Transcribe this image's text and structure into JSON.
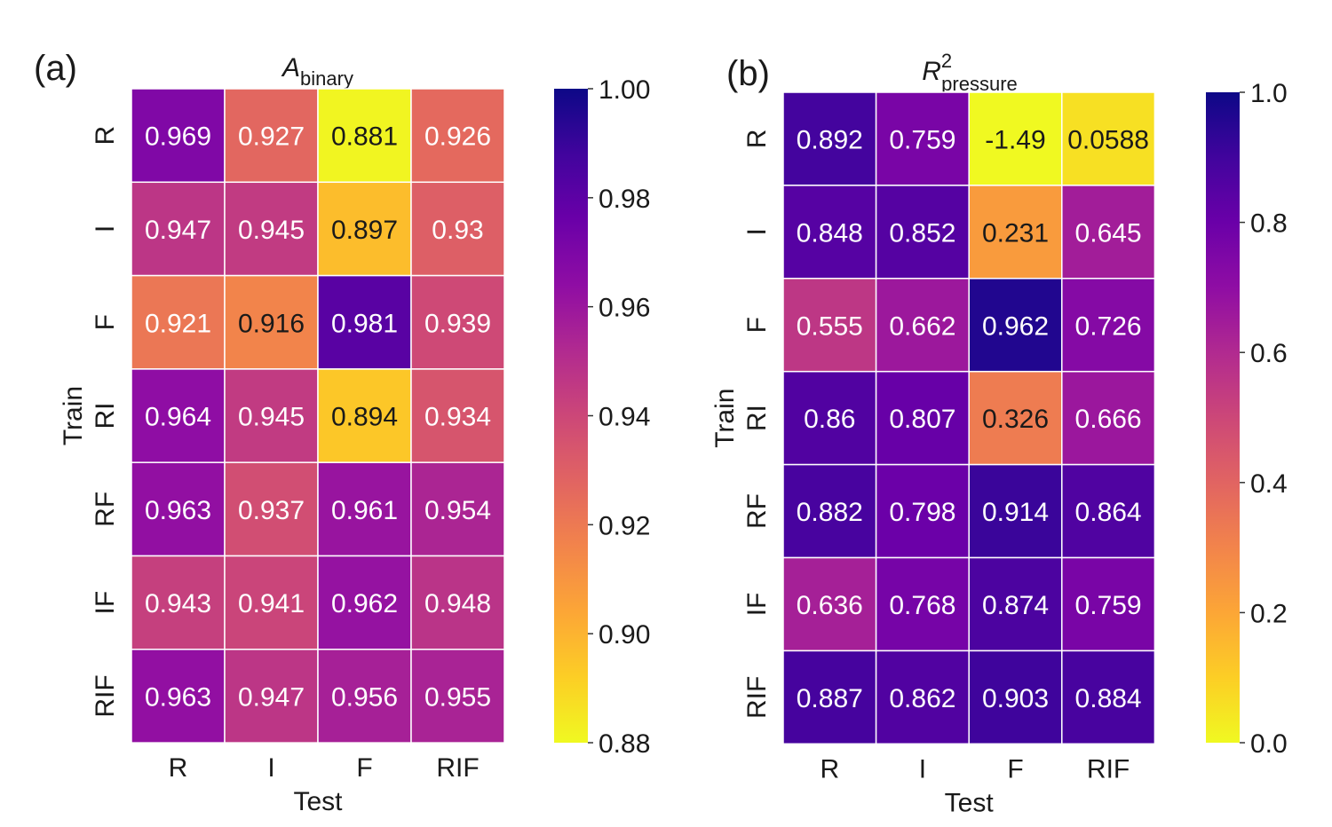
{
  "chart_data": [
    {
      "type": "heatmap",
      "panel_label": "(a)",
      "title": {
        "main": "A",
        "sub": "binary",
        "sup": ""
      },
      "xlabel": "Test",
      "ylabel": "Train",
      "x_categories": [
        "R",
        "I",
        "F",
        "RIF"
      ],
      "y_categories": [
        "R",
        "I",
        "F",
        "RI",
        "RF",
        "IF",
        "RIF"
      ],
      "values": [
        [
          "0.969",
          "0.927",
          "0.881",
          "0.926"
        ],
        [
          "0.947",
          "0.945",
          "0.897",
          "0.93"
        ],
        [
          "0.921",
          "0.916",
          "0.981",
          "0.939"
        ],
        [
          "0.964",
          "0.945",
          "0.894",
          "0.934"
        ],
        [
          "0.963",
          "0.937",
          "0.961",
          "0.954"
        ],
        [
          "0.943",
          "0.941",
          "0.962",
          "0.948"
        ],
        [
          "0.963",
          "0.947",
          "0.956",
          "0.955"
        ]
      ],
      "colormap": "plasma_r",
      "vmin": 0.88,
      "vmax": 1.0,
      "colorbar_ticks": [
        "0.88",
        "0.90",
        "0.92",
        "0.94",
        "0.96",
        "0.98",
        "1.00"
      ]
    },
    {
      "type": "heatmap",
      "panel_label": "(b)",
      "title": {
        "main": "R",
        "sub": "pressure",
        "sup": "2"
      },
      "xlabel": "Test",
      "ylabel": "Train",
      "x_categories": [
        "R",
        "I",
        "F",
        "RIF"
      ],
      "y_categories": [
        "R",
        "I",
        "F",
        "RI",
        "RF",
        "IF",
        "RIF"
      ],
      "values": [
        [
          "0.892",
          "0.759",
          "-1.49",
          "0.0588"
        ],
        [
          "0.848",
          "0.852",
          "0.231",
          "0.645"
        ],
        [
          "0.555",
          "0.662",
          "0.962",
          "0.726"
        ],
        [
          "0.86",
          "0.807",
          "0.326",
          "0.666"
        ],
        [
          "0.882",
          "0.798",
          "0.914",
          "0.864"
        ],
        [
          "0.636",
          "0.768",
          "0.874",
          "0.759"
        ],
        [
          "0.887",
          "0.862",
          "0.903",
          "0.884"
        ]
      ],
      "colormap": "plasma_r",
      "vmin": 0.0,
      "vmax": 1.0,
      "colorbar_ticks": [
        "0.0",
        "0.2",
        "0.4",
        "0.6",
        "0.8",
        "1.0"
      ]
    }
  ]
}
